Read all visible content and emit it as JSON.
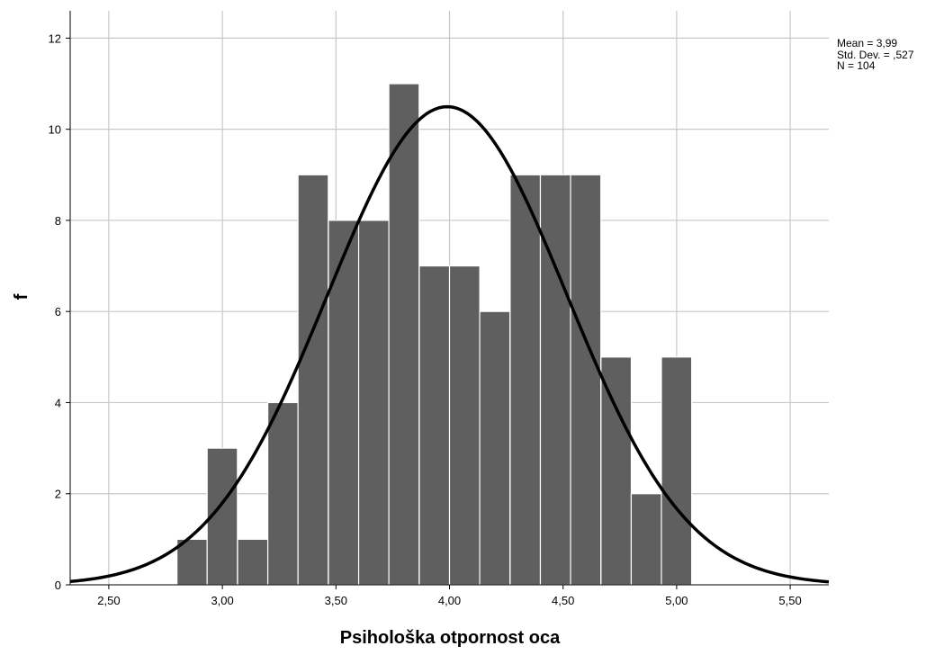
{
  "chart_data": {
    "type": "bar",
    "subtype": "histogram",
    "xlabel": "Psihološka otpornost oca",
    "ylabel": "f",
    "xlim": [
      2.33,
      5.67
    ],
    "ylim": [
      0,
      12.6
    ],
    "x_ticks": [
      2.5,
      3.0,
      3.5,
      4.0,
      4.5,
      5.0,
      5.5
    ],
    "x_tick_labels": [
      "2,50",
      "3,00",
      "3,50",
      "4,00",
      "4,50",
      "5,00",
      "5,50"
    ],
    "y_ticks": [
      0,
      2,
      4,
      6,
      8,
      10,
      12
    ],
    "y_tick_labels": [
      "0",
      "2",
      "4",
      "6",
      "8",
      "10",
      "12"
    ],
    "bin_width": 0.1333,
    "bins": [
      {
        "start": 2.8,
        "count": 1
      },
      {
        "start": 2.933,
        "count": 3
      },
      {
        "start": 3.067,
        "count": 1
      },
      {
        "start": 3.2,
        "count": 4
      },
      {
        "start": 3.333,
        "count": 9
      },
      {
        "start": 3.467,
        "count": 8
      },
      {
        "start": 3.6,
        "count": 8
      },
      {
        "start": 3.733,
        "count": 11
      },
      {
        "start": 3.867,
        "count": 7
      },
      {
        "start": 4.0,
        "count": 7
      },
      {
        "start": 4.133,
        "count": 6
      },
      {
        "start": 4.267,
        "count": 9
      },
      {
        "start": 4.4,
        "count": 9
      },
      {
        "start": 4.533,
        "count": 9
      },
      {
        "start": 4.667,
        "count": 5
      },
      {
        "start": 4.8,
        "count": 2
      },
      {
        "start": 4.933,
        "count": 5
      }
    ],
    "normal_curve": {
      "mean": 3.99,
      "std_dev": 0.527,
      "n": 104
    },
    "grid": true,
    "colors": {
      "bar": "#5f5f5f",
      "bar_edge": "#ffffff",
      "curve": "#000000",
      "grid": "#c8c8c8",
      "axis": "#000000"
    }
  },
  "stats_box": {
    "mean": "Mean = 3,99",
    "std": "Std. Dev. = ,527",
    "n": "N = 104"
  }
}
